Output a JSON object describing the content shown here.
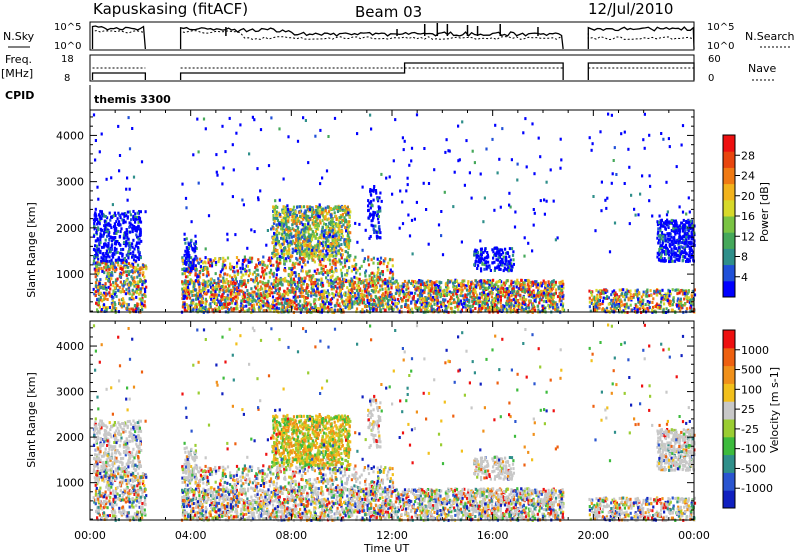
{
  "header": {
    "station": "Kapuskasing (fitACF)",
    "beam": "Beam 03",
    "date": "12/Jul/2010"
  },
  "panels": {
    "nsky_label": "N.Sky",
    "nsky_ticks": [
      "10^5",
      "10^0"
    ],
    "nsearch_ticks": [
      "10^5",
      "10^0"
    ],
    "nsearch_label": "N.Search",
    "freq_label": "Freq.",
    "freq_unit": "[MHz]",
    "freq_ticks": [
      "18",
      "8"
    ],
    "nave_ticks": [
      "60",
      "0"
    ],
    "nave_label": "Nave",
    "cpid_label": "CPID",
    "cpid_value": "themis 3300"
  },
  "chart_data": [
    {
      "type": "heatmap",
      "name": "power",
      "xlabel": "Time UT",
      "ylabel": "Slant Range [km]",
      "x_ticks": [
        "00:00",
        "04:00",
        "08:00",
        "12:00",
        "16:00",
        "20:00",
        "00:00"
      ],
      "xlim_hours": [
        0,
        24
      ],
      "ylim_km": [
        180,
        4550
      ],
      "y_ticks": [
        1000,
        2000,
        3000,
        4000
      ],
      "colorbar_label": "Power [dB]",
      "colorbar_ticks": [
        "28",
        "24",
        "20",
        "16",
        "12",
        "8",
        "4"
      ],
      "colorbar_colors": [
        "#0000ff",
        "#2050d8",
        "#2f8f8a",
        "#45a85a",
        "#7ac443",
        "#d7d92a",
        "#f2b31c",
        "#f07a13",
        "#e8450e",
        "#ee1010"
      ],
      "data_gaps_hours": [
        [
          2.2,
          3.6
        ],
        [
          18.8,
          19.8
        ]
      ]
    },
    {
      "type": "heatmap",
      "name": "velocity",
      "xlabel": "Time UT",
      "ylabel": "Slant Range [km]",
      "x_ticks": [
        "00:00",
        "04:00",
        "08:00",
        "12:00",
        "16:00",
        "20:00",
        "00:00"
      ],
      "xlim_hours": [
        0,
        24
      ],
      "ylim_km": [
        180,
        4550
      ],
      "y_ticks": [
        1000,
        2000,
        3000,
        4000
      ],
      "colorbar_label": "Velocity [m s-1]",
      "colorbar_ticks": [
        "1000",
        "500",
        "100",
        "25",
        "-25",
        "-100",
        "-500",
        "-1000"
      ],
      "colorbar_colors": [
        "#1020c0",
        "#2a55d0",
        "#2f8f8a",
        "#3dbb3d",
        "#9acd32",
        "#c8c8c8",
        "#f2c01c",
        "#f0901a",
        "#ee6010",
        "#ee1010"
      ],
      "data_gaps_hours": [
        [
          2.2,
          3.6
        ],
        [
          18.8,
          19.8
        ]
      ]
    }
  ]
}
